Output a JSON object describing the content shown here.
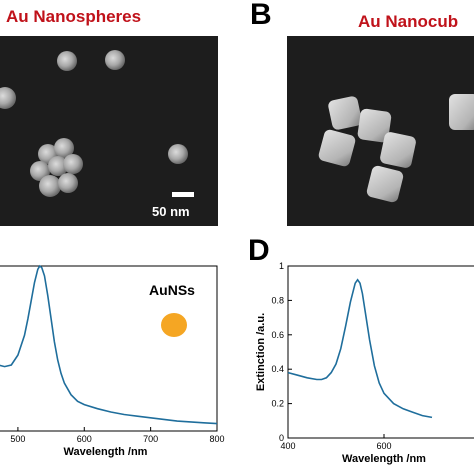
{
  "panels": {
    "a": {
      "title": "Au Nanospheres",
      "scale_bar": "50 nm"
    },
    "b": {
      "letter": "B",
      "title": "Au Nanocub"
    },
    "c": {},
    "d": {
      "letter": "D"
    }
  },
  "colors": {
    "title_red": "#c0121a",
    "curve_blue": "#1f6e9c",
    "legend_dot": "#f5a623",
    "sem_background": "#1d1d1d"
  },
  "chart_data": [
    {
      "type": "line",
      "panel": "C",
      "xlabel": "Wavelength /nm",
      "ylabel": "",
      "xlim": [
        470,
        800
      ],
      "ylim": [
        0,
        1
      ],
      "x_ticks": [
        "500",
        "600",
        "700",
        "800"
      ],
      "y_ticks": [],
      "legend": "AuNSs",
      "series": [
        {
          "x": [
            470,
            480,
            490,
            500,
            510,
            515,
            520,
            525,
            530,
            533,
            536,
            540,
            545,
            550,
            555,
            560,
            565,
            570,
            580,
            590,
            600,
            620,
            640,
            660,
            680,
            700,
            720,
            740,
            760,
            780,
            800
          ],
          "y": [
            0.4,
            0.39,
            0.4,
            0.46,
            0.58,
            0.68,
            0.79,
            0.9,
            0.98,
            1.0,
            0.99,
            0.94,
            0.82,
            0.68,
            0.54,
            0.43,
            0.35,
            0.29,
            0.22,
            0.18,
            0.16,
            0.135,
            0.115,
            0.1,
            0.09,
            0.08,
            0.07,
            0.06,
            0.055,
            0.05,
            0.045
          ]
        }
      ]
    },
    {
      "type": "line",
      "panel": "D",
      "xlabel": "Wavelength /nm",
      "ylabel": "Extinction /a.u.",
      "xlim": [
        400,
        800
      ],
      "ylim": [
        0,
        1
      ],
      "x_ticks": [
        "400",
        "600"
      ],
      "y_ticks": [
        "0",
        "0.2",
        "0.4",
        "0.6",
        "0.8",
        "1"
      ],
      "series": [
        {
          "x": [
            400,
            420,
            440,
            460,
            470,
            480,
            490,
            500,
            510,
            520,
            530,
            540,
            545,
            550,
            555,
            560,
            570,
            580,
            590,
            600,
            620,
            640,
            660,
            680,
            700
          ],
          "y": [
            0.38,
            0.365,
            0.35,
            0.34,
            0.34,
            0.35,
            0.38,
            0.43,
            0.52,
            0.65,
            0.79,
            0.9,
            0.92,
            0.9,
            0.84,
            0.75,
            0.57,
            0.42,
            0.32,
            0.26,
            0.2,
            0.17,
            0.15,
            0.13,
            0.12
          ]
        }
      ]
    }
  ]
}
